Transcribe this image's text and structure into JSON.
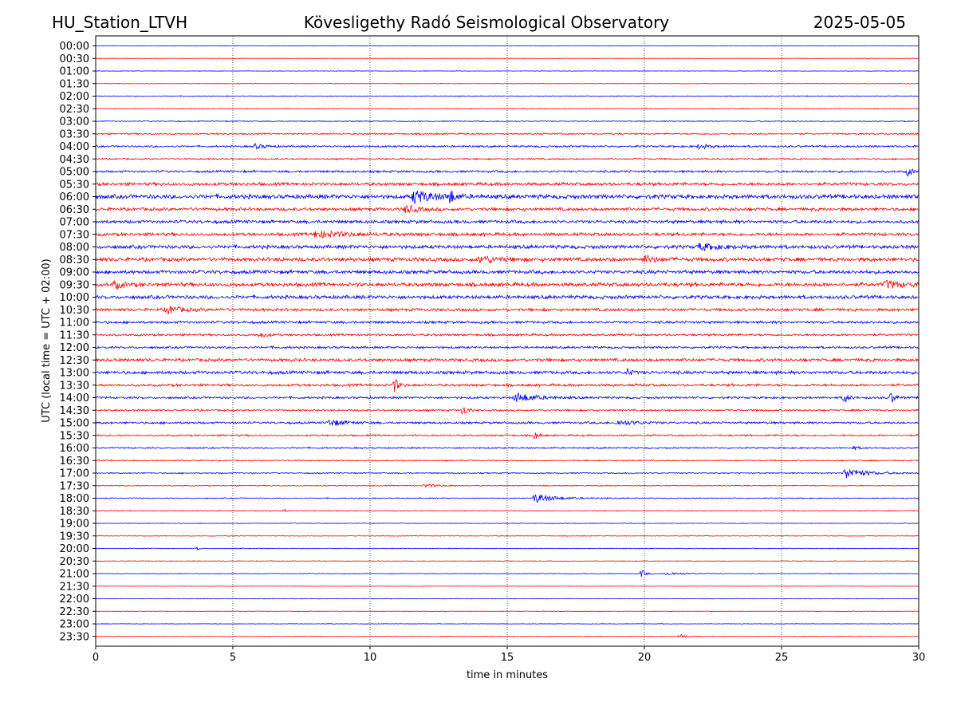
{
  "header": {
    "station": "HU_Station_LTVH",
    "observatory": "Kövesligethy Radó Seismological Observatory",
    "date": "2025-05-05"
  },
  "colors": {
    "even_trace": "#0000ff",
    "odd_trace": "#ff0000",
    "grid": "#000000",
    "axes": "#000000"
  },
  "chart_data": {
    "type": "line",
    "title": "Kövesligethy Radó Seismological Observatory",
    "xlabel": "time in minutes",
    "ylabel": "UTC (local time = UTC + 02:00)",
    "xlim": [
      0,
      30
    ],
    "x_ticks": [
      0,
      5,
      10,
      15,
      20,
      25,
      30
    ],
    "grid": "vertical dotted lines at x ticks",
    "rows": [
      "00:00",
      "00:30",
      "01:00",
      "01:30",
      "02:00",
      "02:30",
      "03:00",
      "03:30",
      "04:00",
      "04:30",
      "05:00",
      "05:30",
      "06:00",
      "06:30",
      "07:00",
      "07:30",
      "08:00",
      "08:30",
      "09:00",
      "09:30",
      "10:00",
      "10:30",
      "11:00",
      "11:30",
      "12:00",
      "12:30",
      "13:00",
      "13:30",
      "14:00",
      "14:30",
      "15:00",
      "15:30",
      "16:00",
      "16:30",
      "17:00",
      "17:30",
      "18:00",
      "18:30",
      "19:00",
      "19:30",
      "20:00",
      "20:30",
      "21:00",
      "21:30",
      "22:00",
      "22:30",
      "23:00",
      "23:30"
    ],
    "trace_colors": [
      "blue",
      "red"
    ],
    "noise_level": [
      0.3,
      0.3,
      0.3,
      0.4,
      0.5,
      0.5,
      0.6,
      0.9,
      1.1,
      0.9,
      1.3,
      1.9,
      2.5,
      1.9,
      1.9,
      1.9,
      2.1,
      2.3,
      2.1,
      2.3,
      2.1,
      1.7,
      1.5,
      1.3,
      1.3,
      1.9,
      1.9,
      1.5,
      1.3,
      1.1,
      1.3,
      1.0,
      0.9,
      0.7,
      0.7,
      0.6,
      0.6,
      0.5,
      0.4,
      0.4,
      0.4,
      0.4,
      0.4,
      0.3,
      0.3,
      0.3,
      0.3,
      0.3
    ],
    "events": [
      {
        "row": "04:00",
        "minute": 5.8,
        "amp": 3,
        "dur": 0.8
      },
      {
        "row": "04:00",
        "minute": 22.0,
        "amp": 3,
        "dur": 0.8
      },
      {
        "row": "05:00",
        "minute": 29.6,
        "amp": 5,
        "dur": 0.4
      },
      {
        "row": "06:00",
        "minute": 11.6,
        "amp": 8,
        "dur": 1.5
      },
      {
        "row": "06:00",
        "minute": 12.9,
        "amp": 10,
        "dur": 0.3
      },
      {
        "row": "06:30",
        "minute": 11.3,
        "amp": 5,
        "dur": 0.8
      },
      {
        "row": "07:30",
        "minute": 8.0,
        "amp": 4,
        "dur": 2.5
      },
      {
        "row": "08:00",
        "minute": 22.0,
        "amp": 4,
        "dur": 1.5
      },
      {
        "row": "08:30",
        "minute": 14.0,
        "amp": 4,
        "dur": 1.5
      },
      {
        "row": "08:30",
        "minute": 20.0,
        "amp": 4,
        "dur": 1.0
      },
      {
        "row": "09:30",
        "minute": 0.7,
        "amp": 5,
        "dur": 0.5
      },
      {
        "row": "09:30",
        "minute": 28.8,
        "amp": 4,
        "dur": 1.5
      },
      {
        "row": "10:30",
        "minute": 2.6,
        "amp": 5,
        "dur": 1.0
      },
      {
        "row": "11:30",
        "minute": 6.0,
        "amp": 3,
        "dur": 0.5
      },
      {
        "row": "13:00",
        "minute": 19.4,
        "amp": 5,
        "dur": 0.3
      },
      {
        "row": "13:30",
        "minute": 10.9,
        "amp": 9,
        "dur": 0.3
      },
      {
        "row": "14:00",
        "minute": 15.3,
        "amp": 6,
        "dur": 1.5
      },
      {
        "row": "14:00",
        "minute": 27.3,
        "amp": 7,
        "dur": 0.3
      },
      {
        "row": "14:00",
        "minute": 29.0,
        "amp": 7,
        "dur": 0.3
      },
      {
        "row": "14:30",
        "minute": 13.4,
        "amp": 7,
        "dur": 0.3
      },
      {
        "row": "15:00",
        "minute": 8.5,
        "amp": 4,
        "dur": 1.2
      },
      {
        "row": "15:00",
        "minute": 19.0,
        "amp": 3,
        "dur": 1.5
      },
      {
        "row": "15:30",
        "minute": 16.0,
        "amp": 5,
        "dur": 0.3
      },
      {
        "row": "16:00",
        "minute": 27.6,
        "amp": 2,
        "dur": 0.5
      },
      {
        "row": "17:00",
        "minute": 27.3,
        "amp": 7,
        "dur": 1.5
      },
      {
        "row": "17:30",
        "minute": 12.0,
        "amp": 2,
        "dur": 1.0
      },
      {
        "row": "18:00",
        "minute": 16.0,
        "amp": 6,
        "dur": 1.5
      },
      {
        "row": "18:30",
        "minute": 6.9,
        "amp": 2,
        "dur": 0.2
      },
      {
        "row": "20:00",
        "minute": 3.7,
        "amp": 2,
        "dur": 0.2
      },
      {
        "row": "21:00",
        "minute": 19.9,
        "amp": 5,
        "dur": 0.3
      },
      {
        "row": "21:00",
        "minute": 20.8,
        "amp": 2,
        "dur": 1.2
      },
      {
        "row": "23:30",
        "minute": 21.3,
        "amp": 3,
        "dur": 0.5
      }
    ]
  }
}
